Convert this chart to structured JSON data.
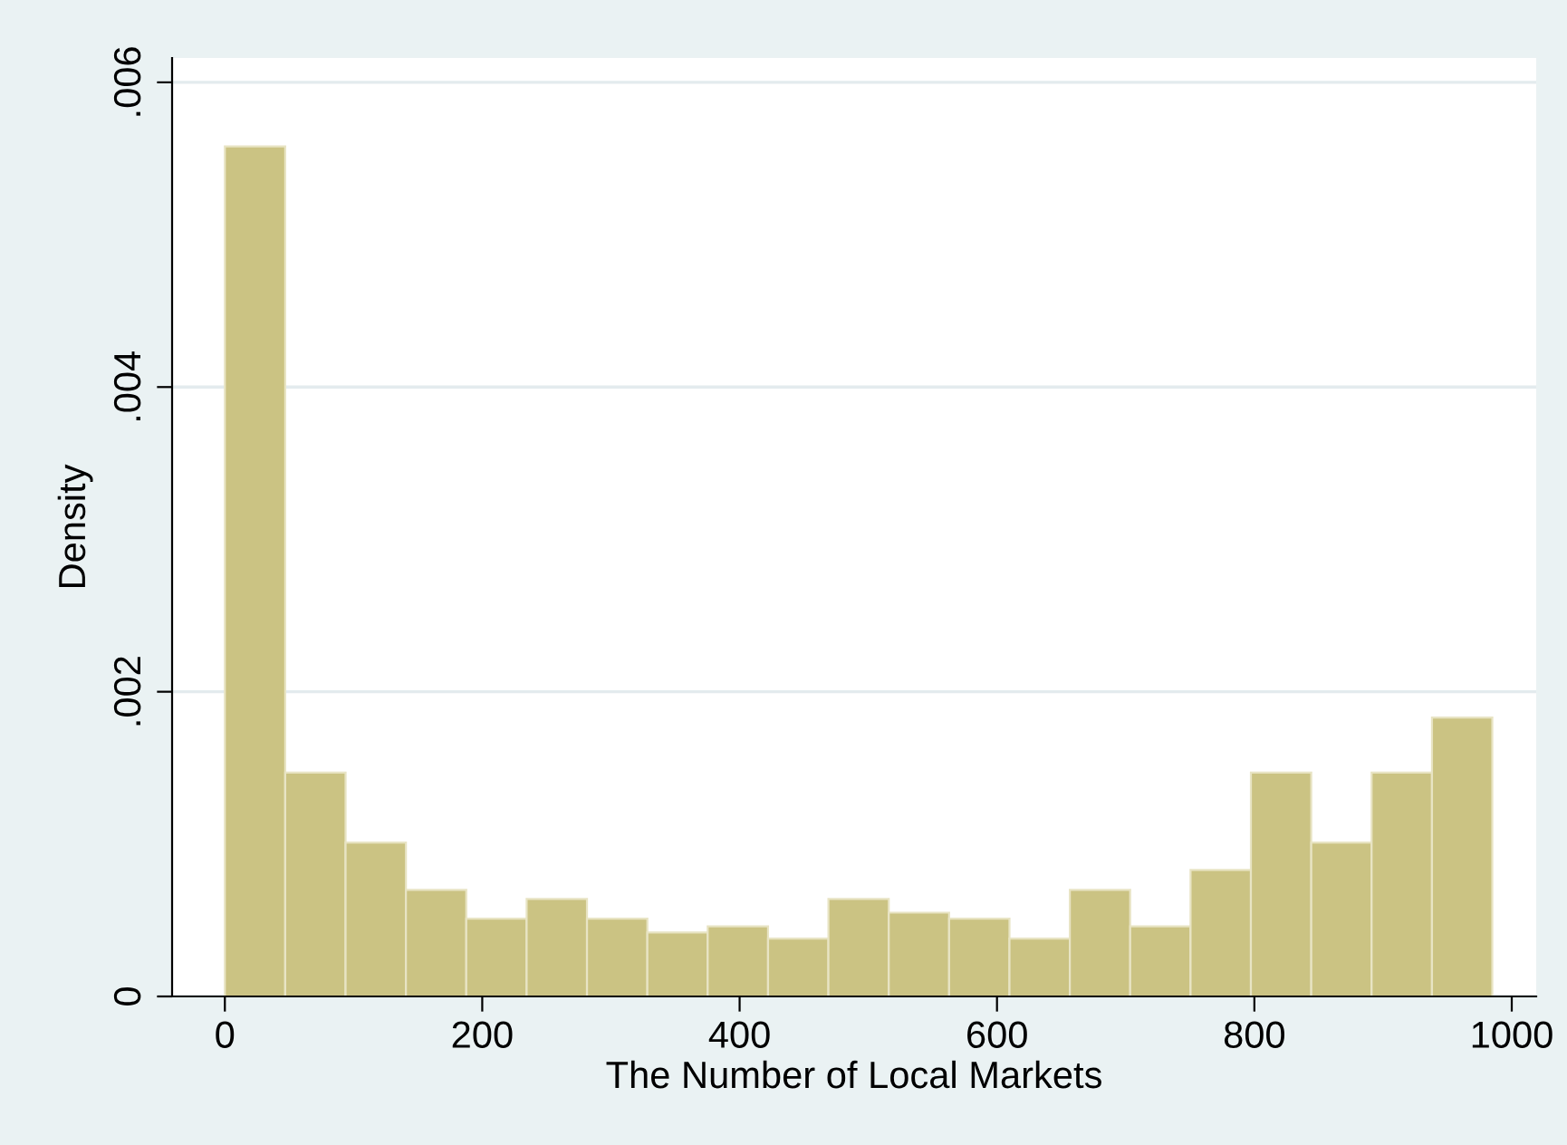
{
  "chart_data": {
    "type": "histogram",
    "xlabel": "The Number of Local Markets",
    "ylabel": "Density",
    "bins": [
      0,
      46.9,
      93.8,
      140.7,
      187.6,
      234.5,
      281.4,
      328.3,
      375.2,
      422.1,
      469,
      515.9,
      562.8,
      609.7,
      656.6,
      703.5,
      750.4,
      797.3,
      844.2,
      891.1,
      938,
      984.9
    ],
    "values": [
      0.00558,
      0.00147,
      0.00101,
      0.0007,
      0.00051,
      0.00064,
      0.00051,
      0.00042,
      0.00046,
      0.00038,
      0.00064,
      0.00055,
      0.00051,
      0.00038,
      0.0007,
      0.00046,
      0.00083,
      0.00147,
      0.00101,
      0.00147,
      0.00183
    ],
    "color": "#cbc383",
    "xlim": [
      -41,
      1019
    ],
    "ylim": [
      0,
      0.00616
    ],
    "xticks": [
      0,
      200,
      400,
      600,
      800,
      1000
    ],
    "yticks": [
      0,
      {
        "value": 0.002,
        "label": ".002"
      },
      {
        "value": 0.004,
        "label": ".004"
      },
      {
        "value": 0.006,
        "label": ".006"
      }
    ],
    "grid": "y",
    "legend": false
  }
}
